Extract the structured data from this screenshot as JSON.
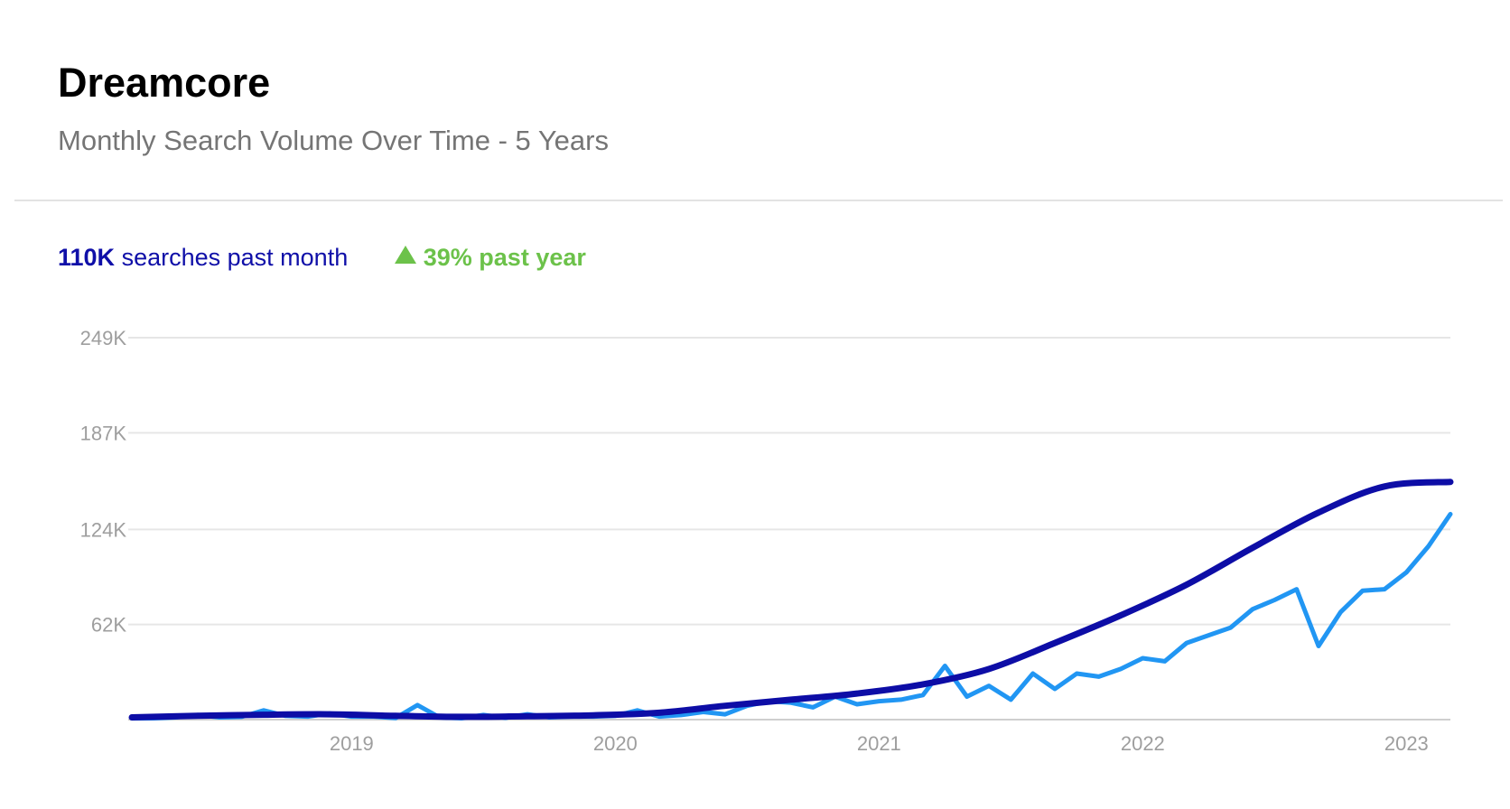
{
  "header": {
    "title": "Dreamcore",
    "subtitle": "Monthly Search  Volume Over  Time -  5 Years"
  },
  "stats": {
    "searches_value": "110K",
    "searches_text": "searches past month",
    "growth_value": "39%",
    "growth_text": "past year"
  },
  "colors": {
    "trend": "#0d0da6",
    "volume": "#2196f3",
    "grid": "#e6e6e6",
    "axis_text": "#9e9e9e",
    "positive": "#6cc24a"
  },
  "chart_data": {
    "type": "line",
    "x_ticks": [
      "2019",
      "2020",
      "2021",
      "2022",
      "2023"
    ],
    "y_ticks": [
      "249K",
      "187K",
      "124K",
      "62K"
    ],
    "ylim": [
      0,
      249000
    ],
    "xlim": [
      "2018-03",
      "2023-03"
    ],
    "grid": true,
    "series": [
      {
        "role": "volume",
        "points": [
          [
            "2018-03",
            800
          ],
          [
            "2018-04",
            900
          ],
          [
            "2018-05",
            1500
          ],
          [
            "2018-06",
            3000
          ],
          [
            "2018-07",
            1500
          ],
          [
            "2018-08",
            1800
          ],
          [
            "2018-09",
            6000
          ],
          [
            "2018-10",
            2500
          ],
          [
            "2018-11",
            2000
          ],
          [
            "2018-12",
            4000
          ],
          [
            "2019-01",
            2000
          ],
          [
            "2019-02",
            2000
          ],
          [
            "2019-03",
            1000
          ],
          [
            "2019-04",
            9500
          ],
          [
            "2019-05",
            1500
          ],
          [
            "2019-06",
            900
          ],
          [
            "2019-07",
            3000
          ],
          [
            "2019-08",
            1200
          ],
          [
            "2019-09",
            3500
          ],
          [
            "2019-10",
            1500
          ],
          [
            "2019-11",
            2000
          ],
          [
            "2019-12",
            2000
          ],
          [
            "2020-01",
            2500
          ],
          [
            "2020-02",
            6000
          ],
          [
            "2020-03",
            2000
          ],
          [
            "2020-04",
            3000
          ],
          [
            "2020-05",
            5000
          ],
          [
            "2020-06",
            3500
          ],
          [
            "2020-07",
            9000
          ],
          [
            "2020-08",
            12000
          ],
          [
            "2020-09",
            11000
          ],
          [
            "2020-10",
            8000
          ],
          [
            "2020-11",
            15000
          ],
          [
            "2020-12",
            10000
          ],
          [
            "2021-01",
            12000
          ],
          [
            "2021-02",
            13000
          ],
          [
            "2021-03",
            16000
          ],
          [
            "2021-04",
            35000
          ],
          [
            "2021-05",
            15000
          ],
          [
            "2021-06",
            22000
          ],
          [
            "2021-07",
            13000
          ],
          [
            "2021-08",
            30000
          ],
          [
            "2021-09",
            20000
          ],
          [
            "2021-10",
            30000
          ],
          [
            "2021-11",
            28000
          ],
          [
            "2021-12",
            33000
          ],
          [
            "2022-01",
            40000
          ],
          [
            "2022-02",
            38000
          ],
          [
            "2022-03",
            50000
          ],
          [
            "2022-04",
            55000
          ],
          [
            "2022-05",
            60000
          ],
          [
            "2022-06",
            72000
          ],
          [
            "2022-07",
            78000
          ],
          [
            "2022-08",
            85000
          ],
          [
            "2022-09",
            48000
          ],
          [
            "2022-10",
            70000
          ],
          [
            "2022-11",
            84000
          ],
          [
            "2022-12",
            85000
          ],
          [
            "2023-01",
            96000
          ],
          [
            "2023-02",
            113000
          ],
          [
            "2023-03",
            134000
          ]
        ]
      },
      {
        "role": "trend",
        "points": [
          [
            "2018-03",
            1500
          ],
          [
            "2018-06",
            2500
          ],
          [
            "2018-09",
            3200
          ],
          [
            "2018-12",
            3500
          ],
          [
            "2019-03",
            2500
          ],
          [
            "2019-06",
            1800
          ],
          [
            "2019-09",
            2200
          ],
          [
            "2019-12",
            2800
          ],
          [
            "2020-03",
            4500
          ],
          [
            "2020-06",
            9000
          ],
          [
            "2020-09",
            13000
          ],
          [
            "2020-12",
            17000
          ],
          [
            "2021-03",
            23000
          ],
          [
            "2021-06",
            33000
          ],
          [
            "2021-09",
            50000
          ],
          [
            "2021-12",
            68000
          ],
          [
            "2022-03",
            88000
          ],
          [
            "2022-06",
            112000
          ],
          [
            "2022-09",
            135000
          ],
          [
            "2022-12",
            152000
          ],
          [
            "2023-03",
            155000
          ]
        ]
      }
    ]
  }
}
